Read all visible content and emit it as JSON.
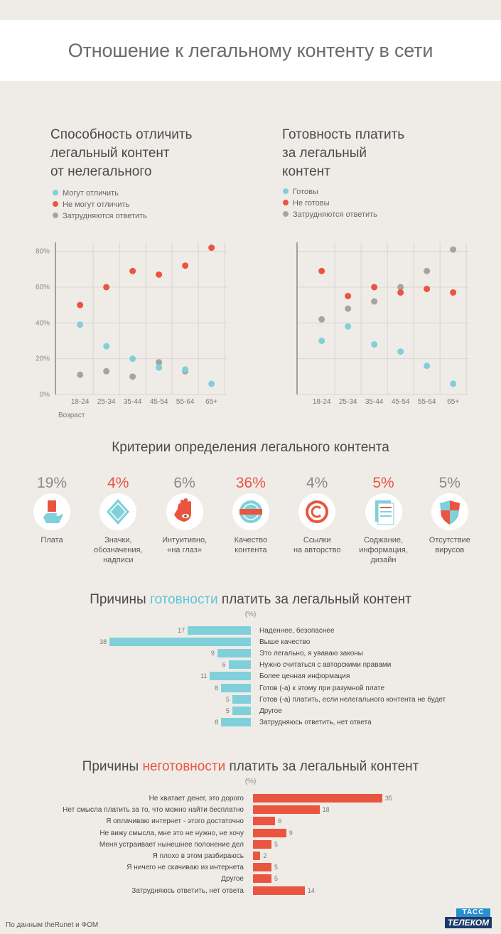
{
  "title": "Отношение к легальному контенту в сети",
  "colors": {
    "blue": "#7fd0da",
    "red": "#e9553f",
    "gray": "#a6a4a3",
    "text": "#555555"
  },
  "chart_data": [
    {
      "type": "scatter",
      "title": "Способность отличить легальный контент от нелегального",
      "title_lines": [
        "Способность отличить",
        "легальный контент",
        "от нелегального"
      ],
      "categories": [
        "18-24",
        "25-34",
        "35-44",
        "45-54",
        "55-64",
        "65+"
      ],
      "xlabel": "Возраст",
      "yticks": [
        "0%",
        "20%",
        "40%",
        "60%",
        "80%"
      ],
      "ylim": [
        0,
        85
      ],
      "series": [
        {
          "name": "Могут отличить",
          "color": "#7fd0da",
          "values": [
            39,
            27,
            20,
            15,
            14,
            6
          ]
        },
        {
          "name": "Не могут отличить",
          "color": "#e9553f",
          "values": [
            50,
            60,
            69,
            67,
            72,
            82
          ]
        },
        {
          "name": "Затрудняются ответить",
          "color": "#a6a4a3",
          "values": [
            11,
            13,
            10,
            18,
            13,
            null
          ]
        }
      ]
    },
    {
      "type": "scatter",
      "title": "Готовность платить за легальный контент",
      "title_lines": [
        "Готовность платить",
        "за легальный",
        "контент"
      ],
      "categories": [
        "18-24",
        "25-34",
        "35-44",
        "45-54",
        "55-64",
        "65+"
      ],
      "xlabel": "",
      "yticks": [],
      "ylim": [
        0,
        85
      ],
      "series": [
        {
          "name": "Готовы",
          "color": "#7fd0da",
          "values": [
            30,
            38,
            28,
            24,
            16,
            6
          ]
        },
        {
          "name": "Не готовы",
          "color": "#e9553f",
          "values": [
            69,
            55,
            60,
            57,
            59,
            57
          ]
        },
        {
          "name": "Затрудняются ответить",
          "color": "#a6a4a3",
          "values": [
            42,
            48,
            52,
            60,
            69,
            81
          ]
        }
      ]
    },
    {
      "type": "bar",
      "title": "Критерии определения легального контента",
      "categories": [
        "Плата",
        "Значки, обозначения, надписи",
        "Интуитивно, «на глаз»",
        "Качество контента",
        "Ссылки на авторство",
        "Соджание, информация, дизайн",
        "Отсутствие вирусов"
      ],
      "values": [
        19,
        4,
        6,
        36,
        4,
        5,
        5
      ]
    },
    {
      "type": "bar",
      "title": "Причины готовности платить за легальный контент",
      "unit": "(%)",
      "color": "#7fd0da",
      "categories": [
        "Наденнее, безопаснее",
        "Выше качество",
        "Это легально, я уваваю законы",
        "Нужно считаться с авторскими правами",
        "Более ценная информация",
        "Готов (-а) к этому при разумной плате",
        "Готов (-а) платить, если нелегального контента не будет",
        "Другое",
        "Затрудняюсь ответить, нет ответа"
      ],
      "values": [
        17,
        38,
        9,
        6,
        11,
        8,
        5,
        5,
        8
      ]
    },
    {
      "type": "bar",
      "title": "Причины неготовности платить за легальный контент",
      "unit": "(%)",
      "color": "#e9553f",
      "categories": [
        "Не хватает денег, это дорого",
        "Нет смысла платить за то, что можно найти бесплатно",
        "Я оплачиваю интернет - этого достаточно",
        "Не вижу смысла, мне это не нужно, не хочу",
        "Меня устраивает нынешнее полонение дел",
        "Я плохо в этом разбираюсь",
        "Я ничего не скачиваю из интернета",
        "Другое",
        "Затрудняюсь ответить, нет ответа"
      ],
      "values": [
        35,
        18,
        6,
        9,
        5,
        2,
        5,
        5,
        14
      ]
    }
  ],
  "criteria": {
    "title": "Критерии определения легального контента",
    "items": [
      {
        "pct": "19%",
        "color": "gray",
        "icon": "card-in-hand-icon",
        "label_lines": [
          "Плата"
        ]
      },
      {
        "pct": "4%",
        "color": "red",
        "icon": "diamond-sign-icon",
        "label_lines": [
          "Значки,",
          "обозначения,",
          "надписи"
        ]
      },
      {
        "pct": "6%",
        "color": "gray",
        "icon": "hand-eye-icon",
        "label_lines": [
          "Интуитивно,",
          "«на глаз»"
        ]
      },
      {
        "pct": "36%",
        "color": "red",
        "icon": "quality-badge-icon",
        "label_lines": [
          "Качество",
          "контента"
        ]
      },
      {
        "pct": "4%",
        "color": "gray",
        "icon": "copyright-icon",
        "label_lines": [
          "Ссылки",
          "на авторство"
        ]
      },
      {
        "pct": "5%",
        "color": "red",
        "icon": "document-icon",
        "label_lines": [
          "Соджание,",
          "информация,",
          "дизайн"
        ]
      },
      {
        "pct": "5%",
        "color": "gray",
        "icon": "shield-icon",
        "label_lines": [
          "Отсутствие",
          "вирусов"
        ]
      }
    ]
  },
  "ready": {
    "title_pre": "Причины ",
    "title_hl": "готовности",
    "title_post": " платить за легальный контент",
    "unit": "(%)"
  },
  "notready": {
    "title_pre": "Причины ",
    "title_hl": "неготовности",
    "title_post": " платить за легальный контент",
    "unit": "(%)"
  },
  "footer": {
    "source": "По данным theRunet и ФОМ",
    "logo_top": "ТАСС",
    "logo_bottom": "ТЕЛЕКОМ"
  }
}
